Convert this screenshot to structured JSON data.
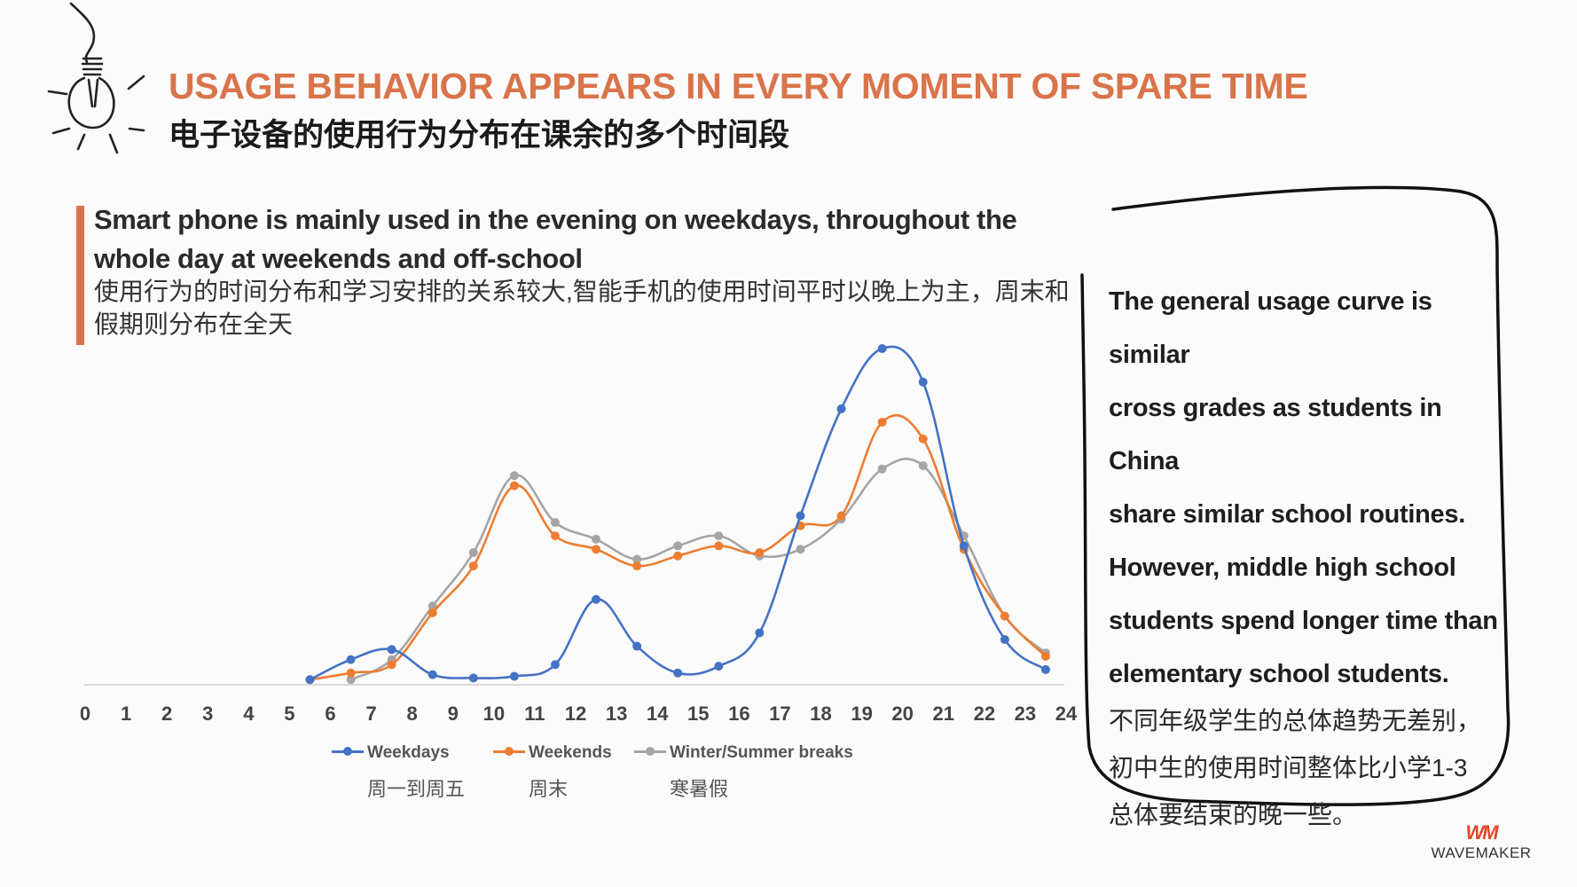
{
  "title": {
    "en": "USAGE BEHAVIOR APPEARS IN EVERY MOMENT OF SPARE TIME",
    "cn": "电子设备的使用行为分布在课余的多个时间段"
  },
  "heading": {
    "en": "Smart phone is mainly used in the evening on weekdays, throughout the whole day at weekends and off-school",
    "cn": "使用行为的时间分布和学习安排的关系较大,智能手机的使用时间平时以晚上为主，周末和假期则分布在全天"
  },
  "callout": {
    "en_lines": [
      "The general usage curve is similar",
      "cross grades as students in China",
      "share similar school routines.",
      "However, middle high school",
      "students spend longer time than",
      "elementary school students."
    ],
    "cn_lines": [
      "不同年级学生的总体趋势无差别，",
      "初中生的使用时间整体比小学1-3",
      "总体要结束的晚一些。"
    ]
  },
  "logo": {
    "mark": "WM",
    "name": "WAVEMAKER"
  },
  "colors": {
    "accent": "#d9744a",
    "weekdays": "#4472c4",
    "weekends": "#ed7d31",
    "breaks": "#a5a5a5"
  },
  "chart_data": {
    "type": "line",
    "xlim": [
      0,
      24
    ],
    "ylim": [
      0,
      100
    ],
    "x_ticks": [
      "0",
      "1",
      "2",
      "3",
      "4",
      "5",
      "6",
      "7",
      "8",
      "9",
      "10",
      "11",
      "12",
      "13",
      "14",
      "15",
      "16",
      "17",
      "18",
      "19",
      "20",
      "21",
      "22",
      "23",
      "24"
    ],
    "ylabel": "",
    "xlabel": "",
    "series": [
      {
        "name": "Weekdays",
        "name_cn": "周一到周五",
        "color": "#4472c4",
        "points": [
          [
            5.5,
            1
          ],
          [
            6.5,
            7
          ],
          [
            7.5,
            10
          ],
          [
            8.5,
            2.5
          ],
          [
            9.5,
            1.5
          ],
          [
            10.5,
            2
          ],
          [
            11.5,
            5.5
          ],
          [
            12.5,
            25
          ],
          [
            13.5,
            11
          ],
          [
            14.5,
            3
          ],
          [
            15.5,
            5
          ],
          [
            16.5,
            15
          ],
          [
            17.5,
            50
          ],
          [
            18.5,
            82
          ],
          [
            19.5,
            100
          ],
          [
            20.5,
            90
          ],
          [
            21.5,
            41
          ],
          [
            22.5,
            13
          ],
          [
            23.5,
            4
          ]
        ]
      },
      {
        "name": "Weekends",
        "name_cn": "周末",
        "color": "#ed7d31",
        "points": [
          [
            5.5,
            1
          ],
          [
            6.5,
            3
          ],
          [
            7.5,
            5.5
          ],
          [
            8.5,
            21
          ],
          [
            9.5,
            35
          ],
          [
            10.5,
            59
          ],
          [
            11.5,
            44
          ],
          [
            12.5,
            40
          ],
          [
            13.5,
            35
          ],
          [
            14.5,
            38
          ],
          [
            15.5,
            41
          ],
          [
            16.5,
            39
          ],
          [
            17.5,
            47
          ],
          [
            18.5,
            50
          ],
          [
            19.5,
            78
          ],
          [
            20.5,
            73
          ],
          [
            21.5,
            40
          ],
          [
            22.5,
            20
          ],
          [
            23.5,
            8
          ]
        ]
      },
      {
        "name": "Winter/Summer breaks",
        "name_cn": "寒暑假",
        "color": "#a5a5a5",
        "points": [
          [
            6.5,
            1
          ],
          [
            7.5,
            7
          ],
          [
            8.5,
            23
          ],
          [
            9.5,
            39
          ],
          [
            10.5,
            62
          ],
          [
            11.5,
            48
          ],
          [
            12.5,
            43
          ],
          [
            13.5,
            37
          ],
          [
            14.5,
            41
          ],
          [
            15.5,
            44
          ],
          [
            16.5,
            38
          ],
          [
            17.5,
            40
          ],
          [
            18.5,
            49
          ],
          [
            19.5,
            64
          ],
          [
            20.5,
            65
          ],
          [
            21.5,
            44
          ],
          [
            22.5,
            20
          ],
          [
            23.5,
            9
          ]
        ]
      }
    ],
    "legend_position": "bottom",
    "grid": false
  }
}
